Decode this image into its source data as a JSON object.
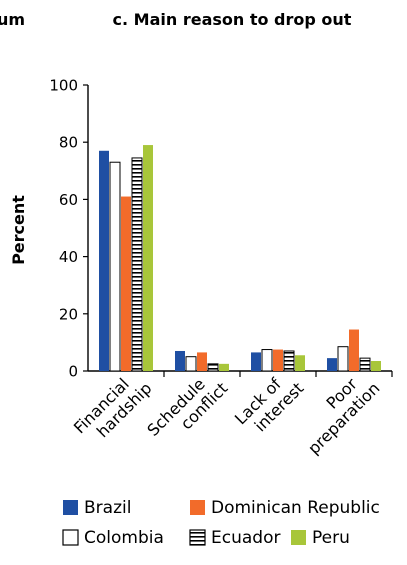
{
  "left_fragment": "um",
  "chart_data": {
    "type": "bar",
    "title": "c. Main reason to drop out",
    "xlabel": "",
    "ylabel": "Percent",
    "ylim": [
      0,
      100
    ],
    "yticks": [
      0,
      20,
      40,
      60,
      80,
      100
    ],
    "grid": false,
    "legend_position": "bottom",
    "categories": [
      [
        "Financial",
        "hardship"
      ],
      [
        "Schedule",
        "conflict"
      ],
      [
        "Lack of",
        "interest"
      ],
      [
        "Poor",
        "preparation"
      ]
    ],
    "series": [
      {
        "name": "Brazil",
        "color": "#1f4fa3",
        "pattern": "solid",
        "values": [
          77,
          7,
          6.5,
          4.5
        ]
      },
      {
        "name": "Colombia",
        "color": "#ffffff",
        "pattern": "outline",
        "values": [
          73,
          5,
          7.5,
          8.5
        ]
      },
      {
        "name": "Dominican Republic",
        "color": "#f26b2a",
        "pattern": "solid",
        "values": [
          61,
          6.5,
          7.5,
          14.5
        ]
      },
      {
        "name": "Ecuador",
        "color": "#ffffff",
        "pattern": "horizontal-stripes",
        "values": [
          74.5,
          2.5,
          7,
          4.5
        ]
      },
      {
        "name": "Peru",
        "color": "#a8c63a",
        "pattern": "solid",
        "values": [
          79,
          2.5,
          5.5,
          3.5
        ]
      }
    ]
  }
}
